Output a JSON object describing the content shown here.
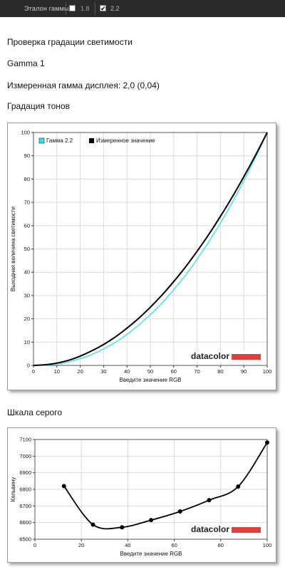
{
  "topbar": {
    "label": "Эталон гаммы:",
    "option1": "1.8",
    "option1_checked": false,
    "option2": "2.2",
    "option2_checked": true
  },
  "page": {
    "title": "Проверка градации светимости",
    "profile": "Gamma 1",
    "measured": "Измеренная гамма дисплея: 2,0 (0,04)",
    "section_tone": "Градация тонов",
    "section_gray": "Шкала серого"
  },
  "logo_text": "datacolor",
  "chart_data": [
    {
      "type": "line",
      "xlabel": "Введите значение RGB",
      "ylabel": "Выходная величина светимости",
      "xlim": [
        0,
        100
      ],
      "ylim": [
        0,
        100
      ],
      "xticks": [
        0,
        10,
        20,
        30,
        40,
        50,
        60,
        70,
        80,
        90,
        100
      ],
      "yticks": [
        0,
        10,
        20,
        30,
        40,
        50,
        60,
        70,
        80,
        90,
        100
      ],
      "grid": true,
      "legend": "top-left",
      "series": [
        {
          "name": "Гамма 2.2",
          "color": "#33e0ee",
          "x": [
            0,
            5,
            10,
            15,
            20,
            25,
            30,
            35,
            40,
            45,
            50,
            55,
            60,
            65,
            70,
            75,
            80,
            85,
            90,
            95,
            100
          ],
          "y": [
            0,
            0.1,
            0.6,
            1.5,
            2.9,
            4.7,
            7.1,
            9.9,
            13.3,
            17.3,
            21.8,
            26.8,
            32.5,
            38.7,
            45.6,
            53.1,
            61.2,
            69.9,
            79.3,
            89.3,
            100
          ]
        },
        {
          "name": "Измеренное значение",
          "color": "#000000",
          "x": [
            0,
            5,
            10,
            15,
            20,
            25,
            30,
            35,
            40,
            45,
            50,
            55,
            60,
            65,
            70,
            75,
            80,
            85,
            90,
            95,
            100
          ],
          "y": [
            0,
            0.3,
            1.0,
            2.2,
            4.0,
            6.3,
            9.0,
            12.2,
            16.0,
            20.2,
            25.0,
            30.2,
            36.0,
            42.2,
            49.0,
            56.2,
            64.0,
            72.2,
            81.0,
            90.2,
            100
          ]
        }
      ]
    },
    {
      "type": "line",
      "xlabel": "Введите значение RGB",
      "ylabel": "Кельвину",
      "xlim": [
        0,
        100
      ],
      "ylim": [
        6500,
        7100
      ],
      "xticks": [
        0,
        20,
        40,
        60,
        80,
        100
      ],
      "yticks": [
        6500,
        6600,
        6700,
        6800,
        6900,
        7000,
        7100
      ],
      "grid": true,
      "series": [
        {
          "color": "#000000",
          "x": [
            12.5,
            25,
            37.5,
            50,
            62.5,
            75,
            87.5,
            100
          ],
          "y": [
            6820,
            6588,
            6572,
            6615,
            6667,
            6735,
            6817,
            7082
          ]
        }
      ]
    }
  ]
}
